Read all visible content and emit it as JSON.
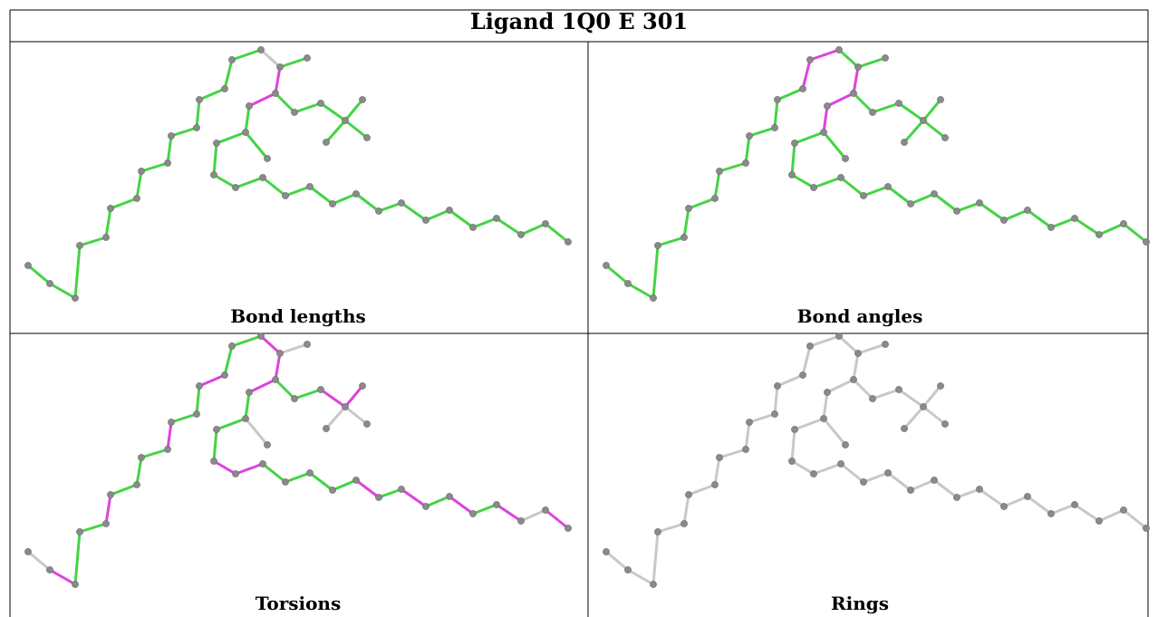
{
  "title": "Ligand 1Q0 E 301",
  "panels": [
    {
      "label": "Bond lengths"
    },
    {
      "label": "Bond angles"
    },
    {
      "label": "Torsions"
    },
    {
      "label": "Rings"
    }
  ],
  "colors": {
    "ok": "#44d444",
    "outlier": "#dd44dd",
    "neutral": "#c8c8c8",
    "atom": "#8a8a8a",
    "border": "#000000"
  }
}
